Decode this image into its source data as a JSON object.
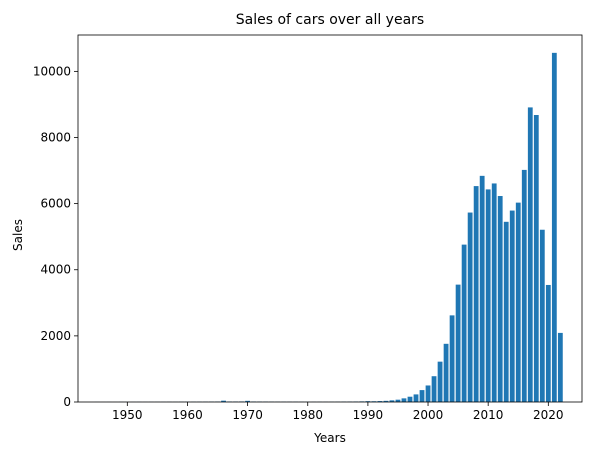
{
  "chart_data": {
    "type": "bar",
    "title": "Sales of cars over all years",
    "xlabel": "Years",
    "ylabel": "Sales",
    "xlim": [
      1941.8,
      2025.6
    ],
    "ylim": [
      0,
      11100
    ],
    "x_ticks": [
      1950,
      1960,
      1970,
      1980,
      1990,
      2000,
      2010,
      2020
    ],
    "y_ticks": [
      0,
      2000,
      4000,
      6000,
      8000,
      10000
    ],
    "grid": false,
    "bar_color": "#1f77b4",
    "series": [
      {
        "x": [
          1945,
          1946,
          1947,
          1948,
          1949,
          1950,
          1951,
          1952,
          1953,
          1954,
          1955,
          1956,
          1957,
          1958,
          1959,
          1960,
          1961,
          1962,
          1963,
          1964,
          1965,
          1966,
          1967,
          1968,
          1969,
          1970,
          1971,
          1972,
          1973,
          1974,
          1975,
          1976,
          1977,
          1978,
          1979,
          1980,
          1981,
          1982,
          1983,
          1984,
          1985,
          1986,
          1987,
          1988,
          1989,
          1990,
          1991,
          1992,
          1993,
          1994,
          1995,
          1996,
          1997,
          1998,
          1999,
          2000,
          2001,
          2002,
          2003,
          2004,
          2005,
          2006,
          2007,
          2008,
          2009,
          2010,
          2011,
          2012,
          2013,
          2014,
          2015,
          2016,
          2017,
          2018,
          2019,
          2020,
          2021,
          2022
        ],
        "values": [
          2,
          1,
          2,
          1,
          3,
          2,
          2,
          3,
          2,
          3,
          4,
          3,
          5,
          4,
          6,
          8,
          6,
          7,
          8,
          10,
          12,
          40,
          15,
          14,
          16,
          35,
          14,
          12,
          10,
          9,
          8,
          7,
          8,
          7,
          6,
          6,
          5,
          6,
          5,
          6,
          8,
          10,
          12,
          15,
          18,
          25,
          22,
          28,
          35,
          50,
          70,
          110,
          160,
          230,
          360,
          500,
          780,
          1220,
          1760,
          2620,
          3550,
          4760,
          5730,
          6530,
          6840,
          6430,
          6610,
          6230,
          5450,
          5790,
          6030,
          7020,
          8910,
          8680,
          5210,
          3540,
          10560,
          2090
        ]
      }
    ]
  }
}
